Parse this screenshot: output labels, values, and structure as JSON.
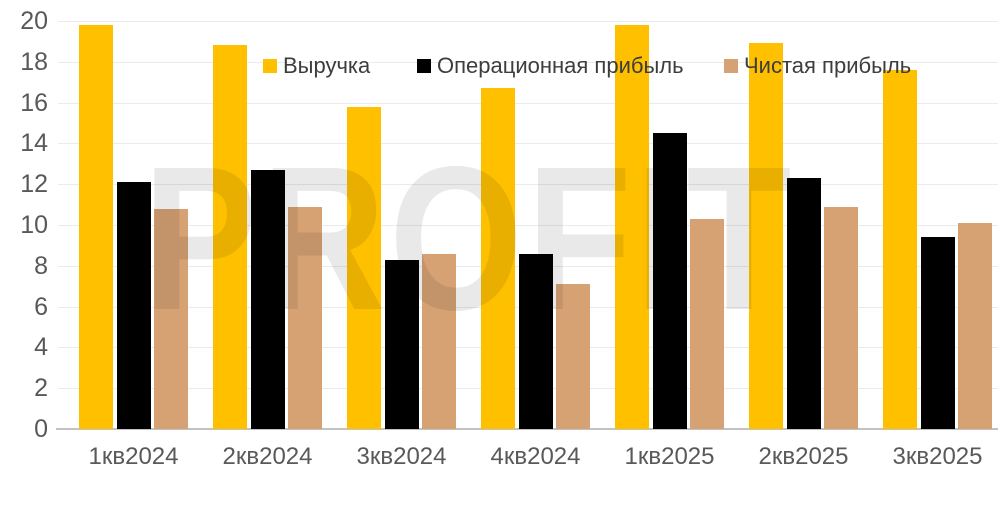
{
  "chart_data": {
    "type": "bar",
    "categories": [
      "1кв2024",
      "2кв2024",
      "3кв2024",
      "4кв2024",
      "1кв2025",
      "2кв2025",
      "3кв2025"
    ],
    "series": [
      {
        "name": "Выручка",
        "color": "#FFC000",
        "values": [
          19.8,
          18.8,
          15.8,
          16.7,
          19.8,
          18.9,
          17.6
        ]
      },
      {
        "name": "Операционная прибыль",
        "color": "#000000",
        "values": [
          12.1,
          12.7,
          8.3,
          8.6,
          14.5,
          12.3,
          9.4
        ]
      },
      {
        "name": "Чистая прибыль",
        "color": "#D6A173",
        "values": [
          10.8,
          10.9,
          8.6,
          7.1,
          10.3,
          10.9,
          10.1
        ]
      }
    ],
    "title": "",
    "xlabel": "",
    "ylabel": "",
    "ylim": [
      0,
      20
    ],
    "ytick_step": 2,
    "grid": true,
    "legend_position": "top"
  },
  "watermark": {
    "text": "PROFIT"
  },
  "colors": {
    "gridline": "#EBEBEB",
    "axis_line": "#C2C2C2",
    "tick_label": "#595959",
    "legend_text": "#3D3D3D"
  }
}
